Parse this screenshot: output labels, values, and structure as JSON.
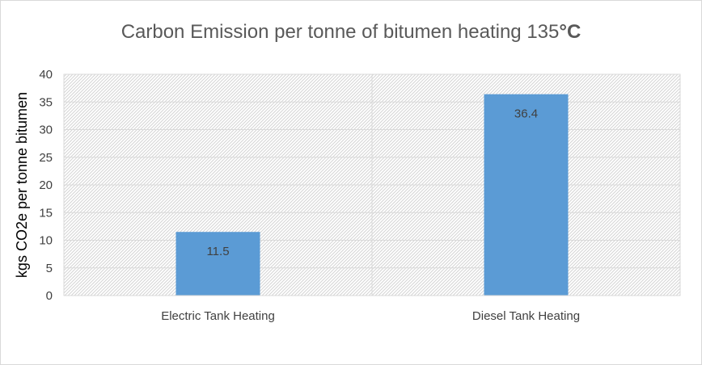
{
  "chart_data": {
    "type": "bar",
    "title": "Carbon Emission per tonne of bitumen heating 135",
    "title_unit": "°C",
    "xlabel": "",
    "ylabel": "kgs CO2e per tonne bitumen",
    "categories": [
      "Electric Tank Heating",
      "Diesel Tank Heating"
    ],
    "values": [
      11.5,
      36.4
    ],
    "data_labels": [
      "11.5",
      "36.4"
    ],
    "ylim": [
      0,
      40
    ],
    "yticks": [
      0,
      5,
      10,
      15,
      20,
      25,
      30,
      35,
      40
    ],
    "grid": true,
    "legend": "none",
    "bar_color": "#5b9bd5",
    "plot_background": "hatched light gray"
  }
}
